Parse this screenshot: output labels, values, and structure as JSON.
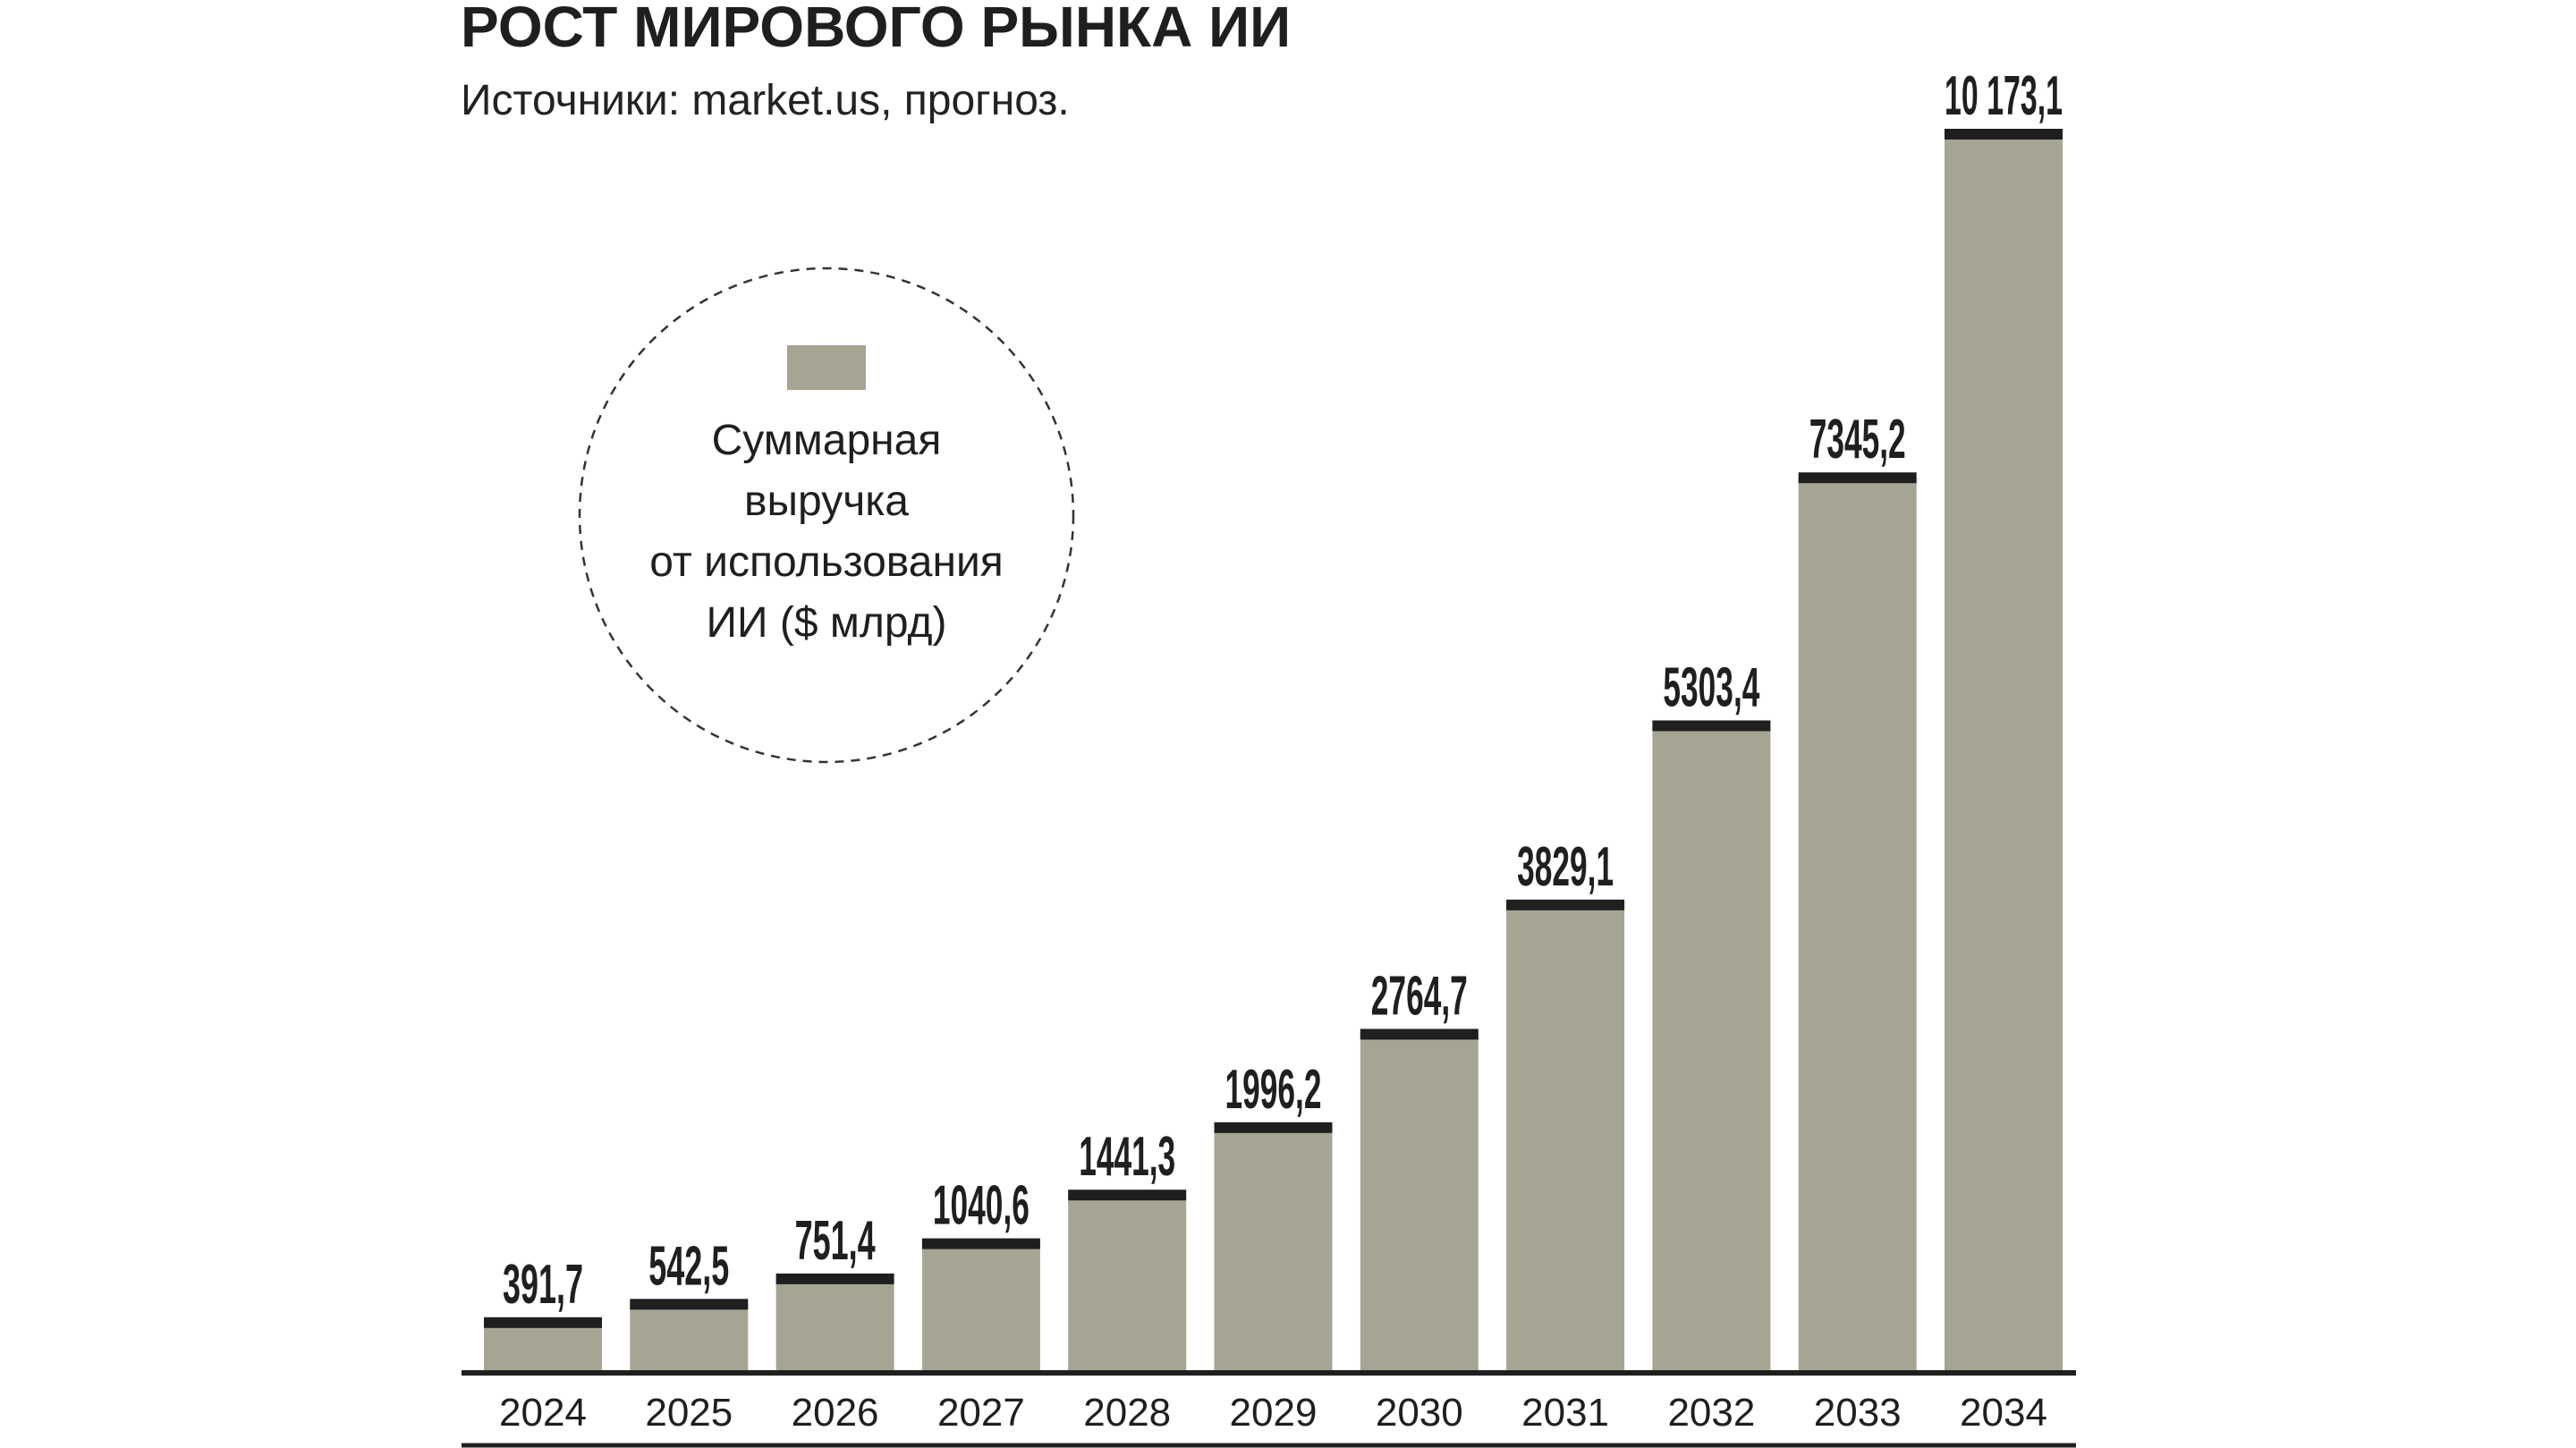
{
  "colors": {
    "bar": "#a6a594",
    "cap": "#1f1f1f",
    "text": "#1f1f1f",
    "axis": "#1f1f1f"
  },
  "chart_data": {
    "type": "bar",
    "title": "РОСТ МИРОВОГО РЫНКА ИИ",
    "subtitle": "Источники: market.us, прогноз.",
    "legend": {
      "placement": "upper-left",
      "lines": [
        "Суммарная",
        "выручка",
        "от использования",
        "ИИ ($ млрд)"
      ]
    },
    "categories": [
      "2024",
      "2025",
      "2026",
      "2027",
      "2028",
      "2029",
      "2030",
      "2031",
      "2032",
      "2033",
      "2034"
    ],
    "values": [
      391.7,
      542.5,
      751.4,
      1040.6,
      1441.3,
      1996.2,
      2764.7,
      3829.1,
      5303.4,
      7345.2,
      10173.1
    ],
    "value_labels": [
      "391,7",
      "542,5",
      "751,4",
      "1040,6",
      "1441,3",
      "1996,2",
      "2764,7",
      "3829,1",
      "5303,4",
      "7345,2",
      "10 173,1"
    ],
    "xlabel": "",
    "ylabel": "",
    "ylim": [
      0,
      10173.1
    ],
    "grid": false
  }
}
